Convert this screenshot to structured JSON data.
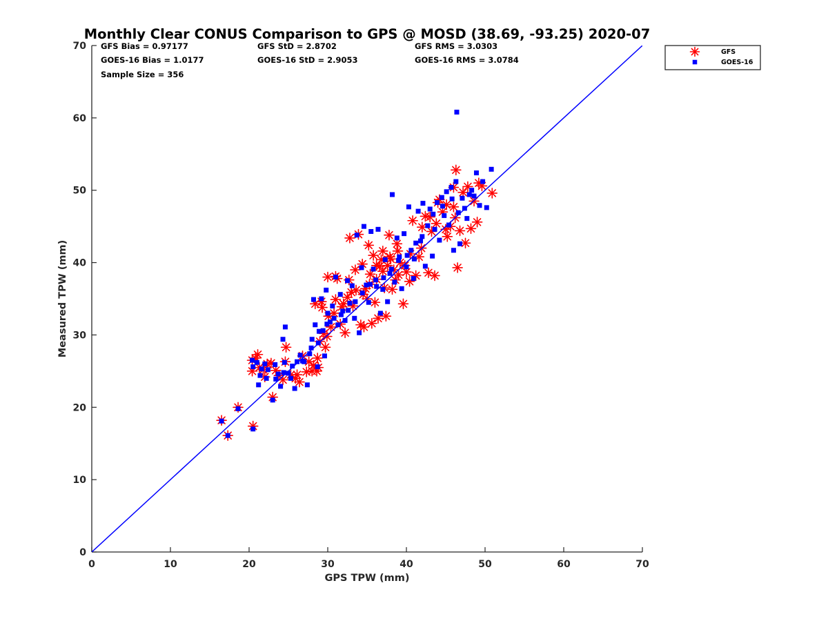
{
  "chart_data": {
    "type": "scatter",
    "title": "Monthly Clear CONUS Comparison to GPS @ MOSD (38.69, -93.25) 2020-07",
    "xlabel": "GPS TPW (mm)",
    "ylabel": "Measured TPW (mm)",
    "xlim": [
      0,
      70
    ],
    "ylim": [
      0,
      70
    ],
    "xticks": [
      "0",
      "10",
      "20",
      "30",
      "40",
      "50",
      "60",
      "70"
    ],
    "yticks": [
      "0",
      "10",
      "20",
      "30",
      "40",
      "50",
      "60",
      "70"
    ],
    "grid": false,
    "legend_position": "outside-top-right",
    "stats": [
      [
        "GFS Bias = 0.97177",
        "GFS StD = 2.8702",
        "GFS RMS = 3.0303"
      ],
      [
        "GOES-16 Bias = 1.0177",
        "GOES-16 StD = 2.9053",
        "GOES-16 RMS = 3.0784"
      ],
      [
        "Sample Size = 356"
      ]
    ],
    "reference_line": {
      "x": [
        0,
        70
      ],
      "y": [
        0,
        70
      ],
      "color": "#0000ff"
    },
    "series": [
      {
        "name": "GFS",
        "marker": "asterisk",
        "color": "#ff0000",
        "points": [
          [
            16.5,
            18.2
          ],
          [
            17.3,
            16.1
          ],
          [
            18.6,
            20.0
          ],
          [
            20.4,
            25.0
          ],
          [
            20.4,
            26.5
          ],
          [
            20.5,
            17.4
          ],
          [
            20.8,
            26.8
          ],
          [
            21.1,
            27.3
          ],
          [
            21.3,
            25.5
          ],
          [
            21.8,
            25.2
          ],
          [
            22.3,
            26.0
          ],
          [
            22.8,
            26.1
          ],
          [
            23.0,
            21.4
          ],
          [
            23.4,
            25.1
          ],
          [
            23.8,
            24.4
          ],
          [
            24.3,
            23.8
          ],
          [
            24.6,
            26.3
          ],
          [
            24.7,
            28.3
          ],
          [
            25.3,
            24.5
          ],
          [
            26.1,
            24.5
          ],
          [
            26.4,
            23.5
          ],
          [
            26.8,
            27.1
          ],
          [
            27.6,
            26.3
          ],
          [
            28.0,
            25.0
          ],
          [
            28.2,
            25.8
          ],
          [
            28.4,
            34.3
          ],
          [
            28.6,
            25.0
          ],
          [
            28.8,
            25.5
          ],
          [
            29.0,
            29.1
          ],
          [
            29.2,
            34.6
          ],
          [
            29.5,
            30.2
          ],
          [
            29.7,
            28.3
          ],
          [
            29.9,
            29.8
          ],
          [
            30.0,
            38.0
          ],
          [
            30.4,
            31.1
          ],
          [
            30.8,
            33.0
          ],
          [
            31.0,
            38.1
          ],
          [
            31.2,
            37.8
          ],
          [
            31.6,
            31.5
          ],
          [
            32.0,
            34.3
          ],
          [
            32.2,
            30.3
          ],
          [
            32.5,
            35.2
          ],
          [
            32.8,
            43.4
          ],
          [
            33.0,
            35.9
          ],
          [
            33.2,
            34.0
          ],
          [
            33.5,
            39.0
          ],
          [
            33.9,
            43.9
          ],
          [
            34.2,
            31.4
          ],
          [
            34.4,
            39.8
          ],
          [
            34.6,
            31.1
          ],
          [
            34.8,
            36.4
          ],
          [
            35.0,
            35.0
          ],
          [
            35.2,
            42.4
          ],
          [
            35.4,
            38.4
          ],
          [
            35.6,
            31.6
          ],
          [
            35.8,
            41.0
          ],
          [
            36.0,
            34.5
          ],
          [
            36.2,
            37.7
          ],
          [
            36.4,
            32.3
          ],
          [
            36.6,
            39.5
          ],
          [
            36.8,
            40.4
          ],
          [
            37.0,
            41.6
          ],
          [
            37.2,
            36.5
          ],
          [
            37.4,
            32.6
          ],
          [
            37.6,
            39.6
          ],
          [
            37.8,
            43.8
          ],
          [
            38.0,
            40.5
          ],
          [
            38.2,
            36.3
          ],
          [
            38.4,
            39.0
          ],
          [
            38.6,
            37.6
          ],
          [
            38.8,
            42.6
          ],
          [
            39.0,
            38.3
          ],
          [
            39.2,
            40.0
          ],
          [
            39.6,
            34.3
          ],
          [
            40.0,
            38.7
          ],
          [
            40.4,
            37.4
          ],
          [
            40.8,
            45.8
          ],
          [
            41.2,
            38.2
          ],
          [
            41.6,
            40.8
          ],
          [
            42.0,
            44.9
          ],
          [
            42.4,
            46.4
          ],
          [
            42.8,
            38.6
          ],
          [
            43.2,
            44.3
          ],
          [
            43.6,
            38.2
          ],
          [
            43.8,
            45.4
          ],
          [
            44.2,
            48.7
          ],
          [
            44.6,
            47.0
          ],
          [
            45.0,
            44.6
          ],
          [
            45.2,
            43.6
          ],
          [
            45.6,
            45.0
          ],
          [
            46.0,
            47.7
          ],
          [
            46.3,
            52.8
          ],
          [
            46.5,
            39.3
          ],
          [
            46.8,
            44.4
          ],
          [
            47.2,
            49.7
          ],
          [
            47.5,
            42.7
          ],
          [
            47.8,
            50.5
          ],
          [
            48.2,
            44.7
          ],
          [
            48.6,
            48.5
          ],
          [
            49.0,
            45.6
          ],
          [
            49.2,
            51.0
          ],
          [
            49.6,
            50.6
          ],
          [
            50.9,
            49.6
          ],
          [
            46.2,
            46.2
          ],
          [
            46.0,
            50.4
          ],
          [
            45.1,
            48.0
          ],
          [
            44.0,
            48.3
          ],
          [
            43.0,
            46.3
          ],
          [
            41.9,
            42.0
          ],
          [
            40.5,
            41.2
          ],
          [
            39.8,
            39.6
          ],
          [
            38.9,
            41.6
          ],
          [
            37.9,
            40.8
          ],
          [
            37.0,
            38.8
          ],
          [
            36.2,
            39.6
          ],
          [
            35.3,
            37.0
          ],
          [
            34.5,
            35.6
          ],
          [
            33.6,
            36.2
          ],
          [
            32.7,
            37.6
          ],
          [
            31.8,
            33.9
          ],
          [
            31.0,
            34.9
          ],
          [
            30.1,
            32.6
          ],
          [
            29.3,
            33.8
          ],
          [
            28.7,
            26.8
          ],
          [
            27.3,
            24.9
          ],
          [
            25.9,
            24.0
          ],
          [
            22.0,
            24.2
          ]
        ]
      },
      {
        "name": "GOES-16",
        "marker": "square",
        "color": "#0000ff",
        "points": [
          [
            16.5,
            18.1
          ],
          [
            17.3,
            16.1
          ],
          [
            18.6,
            19.8
          ],
          [
            20.4,
            26.5
          ],
          [
            20.5,
            25.6
          ],
          [
            20.5,
            17.0
          ],
          [
            21.0,
            26.2
          ],
          [
            21.2,
            23.1
          ],
          [
            21.6,
            25.3
          ],
          [
            22.0,
            26.0
          ],
          [
            22.4,
            25.2
          ],
          [
            23.0,
            21.0
          ],
          [
            23.3,
            25.9
          ],
          [
            23.7,
            24.6
          ],
          [
            24.0,
            22.9
          ],
          [
            24.3,
            29.4
          ],
          [
            24.5,
            26.2
          ],
          [
            24.6,
            31.1
          ],
          [
            25.0,
            24.7
          ],
          [
            25.3,
            24.0
          ],
          [
            25.8,
            22.6
          ],
          [
            26.1,
            26.3
          ],
          [
            26.5,
            27.2
          ],
          [
            27.0,
            26.3
          ],
          [
            27.4,
            23.1
          ],
          [
            27.7,
            27.4
          ],
          [
            28.0,
            29.4
          ],
          [
            28.2,
            34.9
          ],
          [
            28.4,
            31.4
          ],
          [
            28.7,
            25.6
          ],
          [
            28.9,
            30.5
          ],
          [
            29.2,
            35.0
          ],
          [
            29.4,
            30.6
          ],
          [
            29.6,
            27.1
          ],
          [
            29.8,
            36.2
          ],
          [
            30.0,
            33.0
          ],
          [
            30.3,
            31.8
          ],
          [
            30.6,
            34.0
          ],
          [
            31.0,
            38.0
          ],
          [
            31.3,
            31.4
          ],
          [
            31.6,
            35.6
          ],
          [
            31.9,
            33.3
          ],
          [
            32.2,
            32.0
          ],
          [
            32.5,
            37.5
          ],
          [
            32.8,
            34.4
          ],
          [
            33.1,
            36.8
          ],
          [
            33.4,
            32.3
          ],
          [
            33.7,
            43.8
          ],
          [
            34.0,
            30.3
          ],
          [
            34.3,
            39.3
          ],
          [
            34.6,
            45.0
          ],
          [
            34.9,
            36.9
          ],
          [
            35.2,
            34.5
          ],
          [
            35.5,
            44.3
          ],
          [
            35.8,
            39.1
          ],
          [
            36.1,
            37.6
          ],
          [
            36.4,
            44.6
          ],
          [
            36.7,
            33.0
          ],
          [
            37.0,
            36.3
          ],
          [
            37.3,
            40.4
          ],
          [
            37.6,
            34.6
          ],
          [
            37.9,
            38.5
          ],
          [
            38.2,
            49.4
          ],
          [
            38.5,
            37.3
          ],
          [
            38.8,
            43.4
          ],
          [
            39.1,
            40.8
          ],
          [
            39.4,
            36.4
          ],
          [
            39.7,
            44.0
          ],
          [
            40.0,
            39.4
          ],
          [
            40.3,
            47.7
          ],
          [
            40.6,
            41.7
          ],
          [
            40.9,
            37.8
          ],
          [
            41.2,
            42.7
          ],
          [
            41.5,
            47.1
          ],
          [
            41.8,
            43.0
          ],
          [
            42.1,
            48.2
          ],
          [
            42.4,
            39.5
          ],
          [
            42.7,
            45.1
          ],
          [
            43.0,
            47.4
          ],
          [
            43.3,
            40.9
          ],
          [
            43.6,
            44.6
          ],
          [
            43.9,
            48.3
          ],
          [
            44.2,
            43.1
          ],
          [
            44.5,
            49.0
          ],
          [
            44.8,
            46.5
          ],
          [
            45.1,
            49.8
          ],
          [
            45.4,
            45.2
          ],
          [
            45.7,
            50.4
          ],
          [
            46.0,
            41.7
          ],
          [
            46.3,
            51.2
          ],
          [
            46.4,
            60.8
          ],
          [
            46.8,
            42.6
          ],
          [
            47.1,
            48.9
          ],
          [
            47.4,
            47.5
          ],
          [
            47.7,
            46.1
          ],
          [
            48.0,
            49.4
          ],
          [
            48.3,
            50.0
          ],
          [
            48.6,
            49.2
          ],
          [
            48.9,
            52.4
          ],
          [
            49.3,
            47.9
          ],
          [
            49.7,
            51.2
          ],
          [
            50.8,
            52.9
          ],
          [
            50.2,
            47.6
          ],
          [
            46.6,
            46.9
          ],
          [
            45.8,
            48.8
          ],
          [
            44.6,
            47.8
          ],
          [
            43.4,
            46.7
          ],
          [
            42.0,
            43.6
          ],
          [
            41.0,
            40.5
          ],
          [
            40.1,
            41.0
          ],
          [
            39.0,
            40.3
          ],
          [
            38.1,
            39.1
          ],
          [
            37.1,
            37.9
          ],
          [
            36.2,
            36.7
          ],
          [
            35.4,
            37.0
          ],
          [
            34.4,
            35.8
          ],
          [
            33.5,
            34.6
          ],
          [
            32.6,
            33.4
          ],
          [
            31.7,
            32.8
          ],
          [
            30.8,
            32.3
          ],
          [
            29.9,
            31.5
          ],
          [
            28.8,
            28.9
          ],
          [
            27.9,
            28.2
          ],
          [
            26.8,
            26.4
          ],
          [
            25.5,
            25.7
          ],
          [
            24.4,
            24.8
          ],
          [
            23.4,
            23.9
          ],
          [
            22.2,
            24.0
          ],
          [
            21.4,
            24.4
          ]
        ]
      }
    ]
  }
}
